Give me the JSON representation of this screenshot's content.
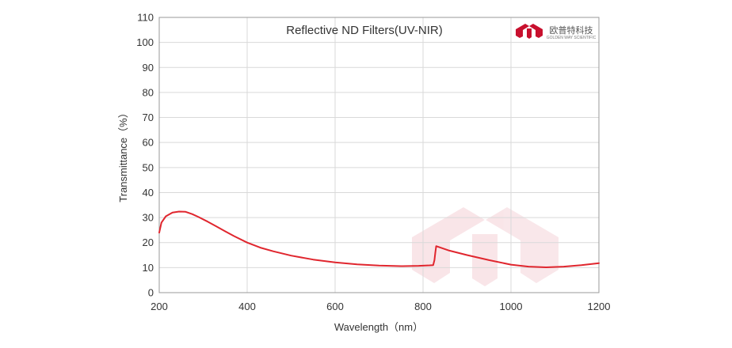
{
  "chart_data": {
    "type": "line",
    "title": "Reflective ND Filters(UV-NIR)",
    "xlabel": "Wavelength（nm）",
    "ylabel": "Transmittance（%）",
    "xlim": [
      200,
      1200
    ],
    "ylim": [
      0,
      110
    ],
    "xticks": [
      200,
      400,
      600,
      800,
      1000,
      1200
    ],
    "yticks": [
      0,
      10,
      20,
      30,
      40,
      50,
      60,
      70,
      80,
      90,
      100,
      110
    ],
    "grid": true,
    "line_color": "#e0262e",
    "series": [
      {
        "x": [
          200,
          205,
          215,
          230,
          245,
          260,
          275,
          290,
          310,
          330,
          350,
          370,
          400,
          430,
          460,
          500,
          550,
          600,
          650,
          700,
          750,
          790,
          815,
          823,
          826,
          828,
          830,
          860,
          900,
          950,
          1000,
          1040,
          1080,
          1120,
          1160,
          1200
        ],
        "y": [
          24,
          28,
          30.5,
          32,
          32.4,
          32.3,
          31.4,
          30.2,
          28.4,
          26.5,
          24.5,
          22.6,
          20,
          18,
          16.5,
          14.8,
          13.2,
          12.1,
          11.3,
          10.8,
          10.6,
          10.7,
          10.9,
          11,
          13,
          16,
          18.6,
          16.8,
          15,
          13,
          11.2,
          10.4,
          10.1,
          10.4,
          11,
          11.8
        ]
      }
    ]
  },
  "brand": {
    "name_cn": "欧普特科技",
    "name_en": "GOLDEN WAY SCIENTIFIC",
    "logo_color": "#c8102e"
  }
}
